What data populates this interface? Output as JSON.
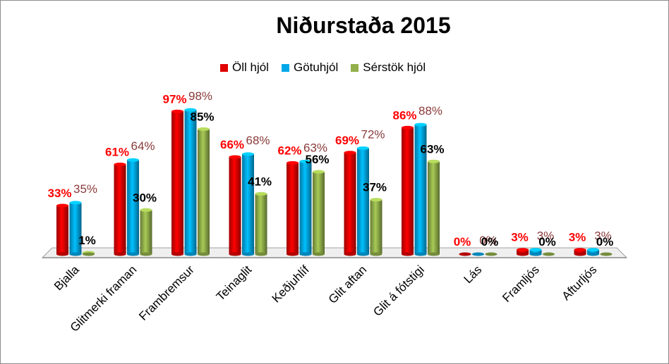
{
  "chart_data": {
    "type": "bar",
    "title": "Niðurstaða 2015",
    "xlabel": "",
    "ylabel": "",
    "ylim": [
      0,
      100
    ],
    "grid": false,
    "legend_position": "top",
    "categories": [
      "Bjalla",
      "Glitmerki framan",
      "Frambremsur",
      "Teinaglit",
      "Keðjuhlíf",
      "Glit aftan",
      "Glit á fótstigi",
      "Lás",
      "Framljós",
      "Afturljós"
    ],
    "series": [
      {
        "name": "Öll hjól",
        "color": "#e00000",
        "values": [
          33,
          61,
          97,
          66,
          62,
          69,
          86,
          0,
          3,
          3
        ],
        "labels": [
          "33%",
          "61%",
          "97%",
          "66%",
          "62%",
          "69%",
          "86%",
          "0%",
          "3%",
          "3%"
        ]
      },
      {
        "name": "Götuhjól",
        "color": "#00a8e8",
        "values": [
          35,
          64,
          98,
          68,
          63,
          72,
          88,
          0,
          3,
          3
        ],
        "labels": [
          "35%",
          "64%",
          "98%",
          "68%",
          "63%",
          "72%",
          "88%",
          "0%",
          "3%",
          "3%"
        ]
      },
      {
        "name": "Sérstök hjól",
        "color": "#92b04b",
        "values": [
          1,
          30,
          85,
          41,
          56,
          37,
          63,
          0,
          0,
          0
        ],
        "labels": [
          "1%",
          "30%",
          "85%",
          "41%",
          "56%",
          "37%",
          "63%",
          "0%",
          "0%",
          "0%"
        ]
      }
    ]
  }
}
